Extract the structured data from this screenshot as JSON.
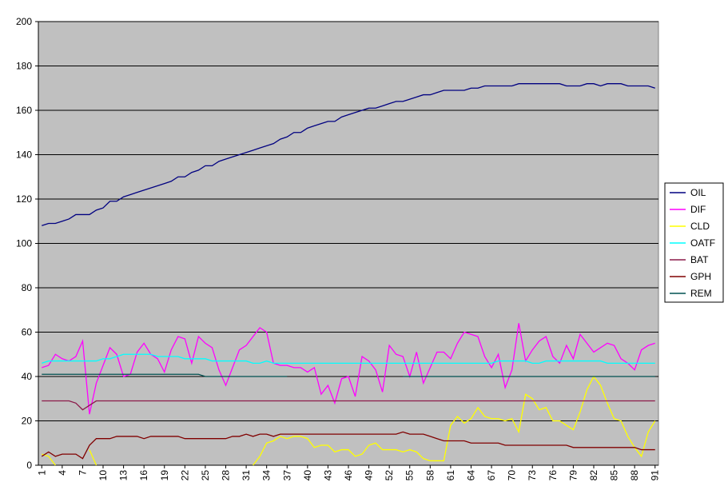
{
  "chart_data": {
    "type": "line",
    "categories": [
      "1",
      null,
      null,
      "4",
      null,
      null,
      "7",
      null,
      null,
      "10",
      null,
      null,
      "13",
      null,
      null,
      "16",
      null,
      null,
      "19",
      null,
      null,
      "22",
      null,
      null,
      "25",
      null,
      null,
      "28",
      null,
      null,
      "31",
      null,
      null,
      "34",
      null,
      null,
      "37",
      null,
      null,
      "40",
      null,
      null,
      "43",
      null,
      null,
      "46",
      null,
      null,
      "49",
      null,
      null,
      "52",
      null,
      null,
      "55",
      null,
      null,
      "58",
      null,
      null,
      "61",
      null,
      null,
      "64",
      null,
      null,
      "67",
      null,
      null,
      "70",
      null,
      null,
      "73",
      null,
      null,
      "76",
      null,
      null,
      "79",
      null,
      null,
      "82",
      null,
      null,
      "85",
      null,
      null,
      "88",
      null,
      null,
      "91"
    ],
    "ylim": [
      0,
      200
    ],
    "yticks": [
      0,
      20,
      40,
      60,
      80,
      100,
      120,
      140,
      160,
      180,
      200
    ],
    "grid": true,
    "legend": "right",
    "series": [
      {
        "name": "OIL",
        "color": "#000080",
        "values": [
          108,
          109,
          109,
          110,
          111,
          113,
          113,
          113,
          115,
          116,
          119,
          119,
          121,
          122,
          123,
          124,
          125,
          126,
          127,
          128,
          130,
          130,
          132,
          133,
          135,
          135,
          137,
          138,
          139,
          140,
          141,
          142,
          143,
          144,
          145,
          147,
          148,
          150,
          150,
          152,
          153,
          154,
          155,
          155,
          157,
          158,
          159,
          160,
          161,
          161,
          162,
          163,
          164,
          164,
          165,
          166,
          167,
          167,
          168,
          169,
          169,
          169,
          169,
          170,
          170,
          171,
          171,
          171,
          171,
          171,
          172,
          172,
          172,
          172,
          172,
          172,
          172,
          171,
          171,
          171,
          172,
          172,
          171,
          172,
          172,
          172,
          171,
          171,
          171,
          171,
          170
        ]
      },
      {
        "name": "DIF",
        "color": "#ff00ff",
        "values": [
          44,
          45,
          50,
          48,
          47,
          49,
          56,
          23,
          37,
          45,
          53,
          50,
          40,
          41,
          51,
          55,
          50,
          48,
          42,
          52,
          58,
          57,
          46,
          58,
          55,
          53,
          43,
          36,
          44,
          52,
          54,
          58,
          62,
          60,
          46,
          45,
          45,
          44,
          44,
          42,
          44,
          32,
          36,
          28,
          39,
          40,
          31,
          49,
          47,
          43,
          33,
          54,
          50,
          49,
          40,
          51,
          37,
          44,
          51,
          51,
          48,
          55,
          60,
          59,
          58,
          49,
          44,
          50,
          35,
          43,
          64,
          47,
          52,
          56,
          58,
          49,
          46,
          54,
          48,
          59,
          55,
          51,
          53,
          55,
          54,
          48,
          46,
          43,
          52,
          54,
          55
        ]
      },
      {
        "name": "CLD",
        "color": "#ffff00",
        "values": [
          5,
          4,
          0,
          null,
          null,
          null,
          null,
          7,
          0,
          null,
          null,
          null,
          null,
          null,
          null,
          null,
          null,
          null,
          null,
          null,
          null,
          null,
          null,
          null,
          null,
          null,
          null,
          null,
          null,
          null,
          null,
          0,
          4,
          10,
          11,
          13,
          12,
          13,
          13,
          12,
          8,
          9,
          9,
          6,
          7,
          7,
          4,
          5,
          9,
          10,
          7,
          7,
          7,
          6,
          7,
          6,
          3,
          2,
          2,
          2,
          18,
          22,
          19,
          21,
          26,
          22,
          21,
          21,
          20,
          21,
          15,
          32,
          30,
          25,
          26,
          20,
          20,
          18,
          16,
          24,
          34,
          40,
          36,
          28,
          21,
          20,
          13,
          8,
          4,
          15,
          20
        ]
      },
      {
        "name": "OATF",
        "color": "#00ffff",
        "values": [
          46,
          47,
          47,
          47,
          47,
          47,
          47,
          47,
          47,
          48,
          48,
          49,
          50,
          50,
          50,
          50,
          50,
          49,
          49,
          49,
          49,
          48,
          48,
          48,
          48,
          47,
          47,
          47,
          47,
          47,
          47,
          46,
          46,
          47,
          46,
          46,
          46,
          46,
          46,
          46,
          46,
          46,
          46,
          46,
          46,
          46,
          46,
          46,
          46,
          46,
          46,
          46,
          46,
          46,
          46,
          46,
          46,
          46,
          46,
          46,
          46,
          46,
          46,
          46,
          46,
          46,
          46,
          47,
          47,
          47,
          47,
          47,
          46,
          46,
          47,
          47,
          47,
          47,
          47,
          47,
          47,
          47,
          47,
          46,
          46,
          46,
          46,
          46,
          46,
          46,
          46
        ]
      },
      {
        "name": "BAT",
        "color": "#8b1a4a",
        "values": [
          29,
          29,
          29,
          29,
          29,
          28,
          25,
          27,
          29,
          29,
          29,
          29,
          29,
          29,
          29,
          29,
          29,
          29,
          29,
          29,
          29,
          29,
          29,
          29,
          29,
          29,
          29,
          29,
          29,
          29,
          29,
          29,
          29,
          29,
          29,
          29,
          29,
          29,
          29,
          29,
          29,
          29,
          29,
          29,
          29,
          29,
          29,
          29,
          29,
          29,
          29,
          29,
          29,
          29,
          29,
          29,
          29,
          29,
          29,
          29,
          29,
          29,
          29,
          29,
          29,
          29,
          29,
          29,
          29,
          29,
          29,
          29,
          29,
          29,
          29,
          29,
          29,
          29,
          29,
          29,
          29,
          29,
          29,
          29,
          29,
          29,
          29,
          29,
          29,
          29,
          29
        ]
      },
      {
        "name": "GPH",
        "color": "#800000",
        "values": [
          4,
          6,
          4,
          5,
          5,
          5,
          3,
          9,
          12,
          12,
          12,
          13,
          13,
          13,
          13,
          12,
          13,
          13,
          13,
          13,
          13,
          12,
          12,
          12,
          12,
          12,
          12,
          12,
          13,
          13,
          14,
          13,
          14,
          14,
          13,
          14,
          14,
          14,
          14,
          14,
          14,
          14,
          14,
          14,
          14,
          14,
          14,
          14,
          14,
          14,
          14,
          14,
          14,
          15,
          14,
          14,
          14,
          13,
          12,
          11,
          11,
          11,
          11,
          10,
          10,
          10,
          10,
          10,
          9,
          9,
          9,
          9,
          9,
          9,
          9,
          9,
          9,
          9,
          8,
          8,
          8,
          8,
          8,
          8,
          8,
          8,
          8,
          8,
          7,
          7,
          7
        ]
      },
      {
        "name": "REM",
        "color": "#005050",
        "values": [
          41,
          41,
          41,
          41,
          41,
          41,
          41,
          41,
          41,
          41,
          41,
          41,
          41,
          41,
          41,
          41,
          41,
          41,
          41,
          41,
          41,
          41,
          41,
          41,
          40,
          40,
          40,
          40,
          40,
          40,
          40,
          40,
          40,
          40,
          40,
          40,
          40,
          null,
          null,
          null,
          null,
          null,
          null,
          null,
          null,
          null,
          null,
          null,
          null,
          null,
          null,
          null,
          null,
          40,
          40,
          40,
          40,
          40,
          40,
          40,
          40,
          40,
          40,
          40,
          40,
          40,
          40,
          40,
          40,
          40,
          40,
          40,
          40,
          40,
          40,
          40,
          40,
          40,
          40,
          40,
          40,
          40,
          40,
          40,
          40,
          40,
          40,
          40,
          40,
          40,
          40
        ]
      }
    ]
  }
}
